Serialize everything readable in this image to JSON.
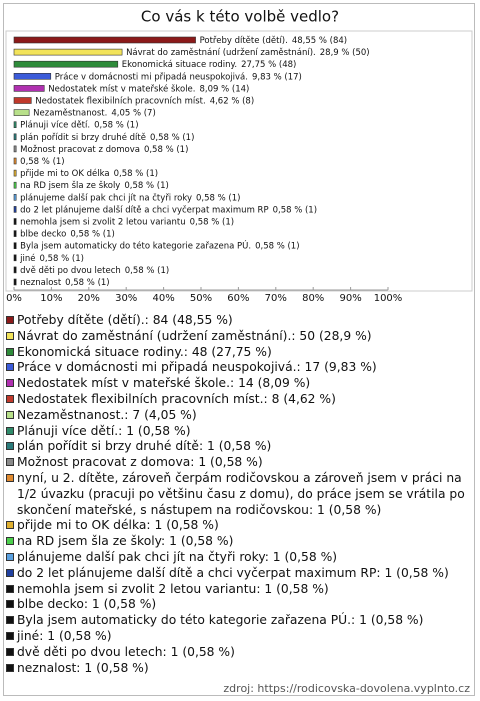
{
  "chart_data": {
    "type": "bar",
    "orientation": "horizontal",
    "title": "Co vás k této volbě vedlo?",
    "categories": [
      "Potřeby dítěte (dětí).",
      "Návrat do zaměstnání (udržení zaměstnání).",
      "Ekonomická situace rodiny.",
      "Práce v domácnosti mi připadá neuspokojivá.",
      "Nedostatek míst v mateřské škole.",
      "Nedostatek flexibilních pracovních míst.",
      "Nezaměstnanost.",
      "Plánuji více dětí.",
      "plán pořídit si brzy druhé dítě",
      "Možnost pracovat z domova",
      null,
      "přijde mi to OK délka",
      "na RD jsem šla ze školy",
      "plánujeme další pak chci jít na čtyři roky",
      "do 2 let plánujeme další dítě a chci vyčerpat maximum RP",
      "nemohla jsem si zvolit 2 letou variantu",
      "blbe decko",
      "Byla jsem automaticky do této kategorie zařazena PÚ.",
      "jiné",
      "dvě děti po dvou letech",
      "neznalost"
    ],
    "values": [
      48.55,
      28.9,
      27.75,
      9.83,
      8.09,
      4.62,
      4.05,
      0.58,
      0.58,
      0.58,
      0.58,
      0.58,
      0.58,
      0.58,
      0.58,
      0.58,
      0.58,
      0.58,
      0.58,
      0.58,
      0.58
    ],
    "value_labels": [
      "48,55 % (84)",
      "28,9 % (50)",
      "27,75 % (48)",
      "9,83 % (17)",
      "8,09 % (14)",
      "4,62 % (8)",
      "4,05 % (7)",
      "0,58 % (1)",
      "0,58 % (1)",
      "0,58 % (1)",
      "0,58 % (1)",
      "0,58 % (1)",
      "0,58 % (1)",
      "0,58 % (1)",
      "0,58 % (1)",
      "0,58 % (1)",
      "0,58 % (1)",
      "0,58 % (1)",
      "0,58 % (1)",
      "0,58 % (1)",
      "0,58 % (1)"
    ],
    "colors": [
      "#8b1a1a",
      "#f2e35a",
      "#2e8b3a",
      "#3b5bd9",
      "#b030b0",
      "#c0392b",
      "#b8e08a",
      "#2e8b6a",
      "#2a7a7a",
      "#8a8a8a",
      "#e08a30",
      "#e0b030",
      "#4cd04c",
      "#5aa0e0",
      "#2040a0",
      "#111111",
      "#111111",
      "#111111",
      "#111111",
      "#111111",
      "#111111"
    ],
    "legend_labels": [
      "Potřeby dítěte (dětí).: 84 (48,55 %)",
      "Návrat do zaměstnání (udržení zaměstnání).: 50 (28,9 %)",
      "Ekonomická situace rodiny.: 48 (27,75 %)",
      "Práce v domácnosti mi připadá neuspokojivá.: 17 (9,83 %)",
      "Nedostatek míst v mateřské škole.: 14 (8,09 %)",
      "Nedostatek flexibilních pracovních míst.: 8 (4,62 %)",
      "Nezaměstnanost.: 7 (4,05 %)",
      "Plánuji více dětí.: 1 (0,58 %)",
      "plán pořídit si brzy druhé dítě: 1 (0,58 %)",
      "Možnost pracovat z domova: 1 (0,58 %)",
      "nyní, u 2. dítěte, zároveň čerpám rodičovskou a zároveň jsem v práci na 1/2 úvazku (pracuji po většinu času z domu), do práce jsem se vrátila po skončení mateřské, s nástupem na rodičovskou: 1 (0,58 %)",
      "přijde mi to OK délka: 1 (0,58 %)",
      "na RD jsem šla ze školy: 1 (0,58 %)",
      "plánujeme další pak chci jít na čtyři roky: 1 (0,58 %)",
      "do 2 let plánujeme další dítě a chci vyčerpat maximum RP: 1 (0,58 %)",
      "nemohla jsem si zvolit 2 letou variantu: 1 (0,58 %)",
      "blbe decko: 1 (0,58 %)",
      "Byla jsem automaticky do této kategorie zařazena PÚ.: 1 (0,58 %)",
      "jiné: 1 (0,58 %)",
      "dvě děti po dvou letech: 1 (0,58 %)",
      "neznalost: 1 (0,58 %)"
    ],
    "xlim": [
      0,
      100
    ],
    "xticks": [
      {
        "value": 0,
        "label": "0%"
      },
      {
        "value": 10,
        "label": "10%"
      },
      {
        "value": 20,
        "label": "20%"
      },
      {
        "value": 30,
        "label": "30%"
      },
      {
        "value": 40,
        "label": "40%"
      },
      {
        "value": 50,
        "label": "50%"
      },
      {
        "value": 60,
        "label": "60%"
      },
      {
        "value": 70,
        "label": "70%"
      },
      {
        "value": 80,
        "label": "80%"
      },
      {
        "value": 90,
        "label": "90%"
      },
      {
        "value": 100,
        "label": "100%"
      }
    ],
    "source": "zdroj: https://rodicovska-dovolena.vyplnto.cz"
  }
}
